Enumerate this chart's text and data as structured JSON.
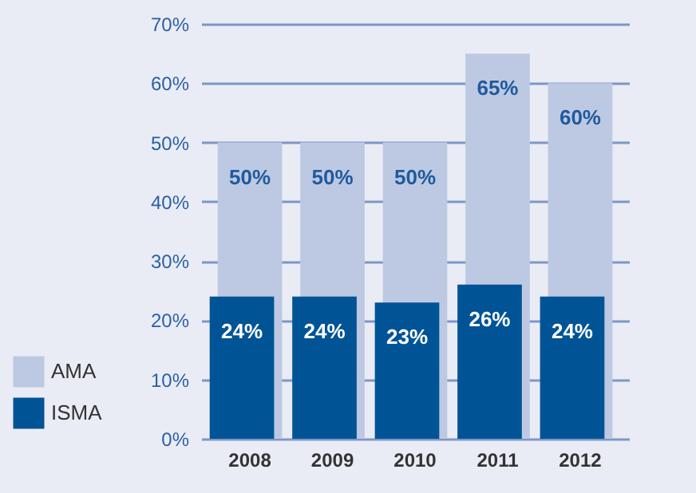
{
  "chart_data": {
    "type": "bar",
    "categories": [
      "2008",
      "2009",
      "2010",
      "2011",
      "2012"
    ],
    "series": [
      {
        "name": "AMA",
        "color": "#bdc9e2",
        "values": [
          50,
          50,
          50,
          65,
          60
        ],
        "value_labels": [
          "50%",
          "50%",
          "50%",
          "65%",
          "60%"
        ]
      },
      {
        "name": "ISMA",
        "color": "#005496",
        "values": [
          24,
          24,
          23,
          26,
          24
        ],
        "value_labels": [
          "24%",
          "24%",
          "23%",
          "26%",
          "24%"
        ]
      }
    ],
    "ylim": [
      0,
      70
    ],
    "yticks": [
      {
        "value": 0,
        "label": "0%"
      },
      {
        "value": 10,
        "label": "10%"
      },
      {
        "value": 20,
        "label": "20%"
      },
      {
        "value": 30,
        "label": "30%"
      },
      {
        "value": 40,
        "label": "40%"
      },
      {
        "value": 50,
        "label": "50%"
      },
      {
        "value": 60,
        "label": "60%"
      },
      {
        "value": 70,
        "label": "70%"
      }
    ],
    "grid": "y",
    "legend": "bottom left"
  }
}
